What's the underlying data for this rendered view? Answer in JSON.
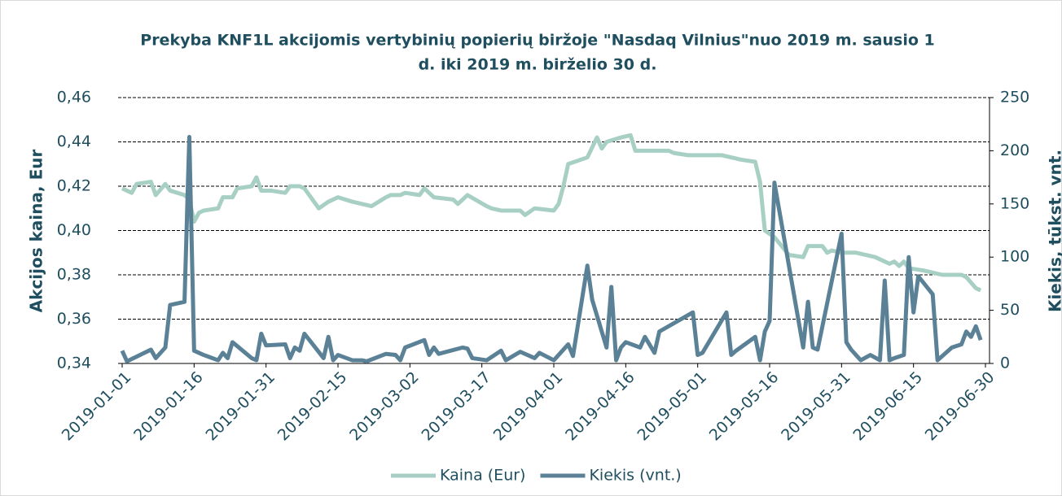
{
  "chart_data": {
    "type": "line",
    "title": "Prekyba KNF1L akcijomis vertybinių popierių biržoje \"Nasdaq Vilnius\"nuo 2019 m. sausio 1",
    "subtitle": "d. iki 2019 m. birželio 30 d.",
    "ylabel": "Akcijos kaina, Eur",
    "y2label": "Kiekis, tūkst. vnt.",
    "xlim": [
      "2019-01-01",
      "2019-06-30"
    ],
    "xticks": [
      "2019-01-01",
      "2019-01-16",
      "2019-01-31",
      "2019-02-15",
      "2019-03-02",
      "2019-03-17",
      "2019-04-01",
      "2019-04-16",
      "2019-05-01",
      "2019-05-16",
      "2019-05-31",
      "2019-06-15",
      "2019-06-30"
    ],
    "ylim": [
      0.34,
      0.46
    ],
    "yticks": [
      {
        "value": 0.34,
        "label": "0,34"
      },
      {
        "value": 0.36,
        "label": "0,36"
      },
      {
        "value": 0.38,
        "label": "0,38"
      },
      {
        "value": 0.4,
        "label": "0,40"
      },
      {
        "value": 0.42,
        "label": "0,42"
      },
      {
        "value": 0.44,
        "label": "0,44"
      },
      {
        "value": 0.46,
        "label": "0,46"
      }
    ],
    "y2lim": [
      0,
      250
    ],
    "y2ticks": [
      0,
      50,
      100,
      150,
      200,
      250
    ],
    "grid": true,
    "legend": "bottom",
    "series": [
      {
        "name": "Kaina (Eur)",
        "color": "#a8cfc4",
        "axis": "y",
        "x": [
          "2019-01-01",
          "2019-01-03",
          "2019-01-04",
          "2019-01-07",
          "2019-01-08",
          "2019-01-10",
          "2019-01-11",
          "2019-01-14",
          "2019-01-15",
          "2019-01-16",
          "2019-01-17",
          "2019-01-18",
          "2019-01-21",
          "2019-01-22",
          "2019-01-24",
          "2019-01-25",
          "2019-01-28",
          "2019-01-29",
          "2019-01-30",
          "2019-02-01",
          "2019-02-04",
          "2019-02-05",
          "2019-02-07",
          "2019-02-08",
          "2019-02-11",
          "2019-02-13",
          "2019-02-15",
          "2019-02-18",
          "2019-02-20",
          "2019-02-22",
          "2019-02-25",
          "2019-02-26",
          "2019-02-28",
          "2019-03-01",
          "2019-03-04",
          "2019-03-05",
          "2019-03-07",
          "2019-03-11",
          "2019-03-12",
          "2019-03-14",
          "2019-03-18",
          "2019-03-19",
          "2019-03-21",
          "2019-03-25",
          "2019-03-26",
          "2019-03-28",
          "2019-04-01",
          "2019-04-02",
          "2019-04-03",
          "2019-04-04",
          "2019-04-08",
          "2019-04-10",
          "2019-04-11",
          "2019-04-12",
          "2019-04-15",
          "2019-04-17",
          "2019-04-18",
          "2019-04-25",
          "2019-04-26",
          "2019-04-29",
          "2019-05-06",
          "2019-05-08",
          "2019-05-10",
          "2019-05-13",
          "2019-05-14",
          "2019-05-15",
          "2019-05-17",
          "2019-05-20",
          "2019-05-23",
          "2019-05-24",
          "2019-05-27",
          "2019-05-28",
          "2019-05-29",
          "2019-05-31",
          "2019-06-03",
          "2019-06-05",
          "2019-06-07",
          "2019-06-10",
          "2019-06-11",
          "2019-06-12",
          "2019-06-13",
          "2019-06-14",
          "2019-06-17",
          "2019-06-19",
          "2019-06-21",
          "2019-06-25",
          "2019-06-26",
          "2019-06-28",
          "2019-06-29"
        ],
        "values": [
          0.419,
          0.417,
          0.421,
          0.422,
          0.416,
          0.421,
          0.418,
          0.416,
          0.414,
          0.404,
          0.408,
          0.409,
          0.41,
          0.415,
          0.415,
          0.419,
          0.42,
          0.424,
          0.418,
          0.418,
          0.417,
          0.42,
          0.42,
          0.419,
          0.41,
          0.413,
          0.415,
          0.413,
          0.412,
          0.411,
          0.415,
          0.416,
          0.416,
          0.417,
          0.416,
          0.419,
          0.415,
          0.414,
          0.412,
          0.416,
          0.411,
          0.41,
          0.409,
          0.409,
          0.407,
          0.41,
          0.409,
          0.412,
          0.42,
          0.43,
          0.433,
          0.442,
          0.437,
          0.44,
          0.442,
          0.443,
          0.436,
          0.436,
          0.435,
          0.434,
          0.434,
          0.433,
          0.432,
          0.431,
          0.422,
          0.4,
          0.397,
          0.389,
          0.388,
          0.393,
          0.393,
          0.39,
          0.391,
          0.39,
          0.39,
          0.389,
          0.388,
          0.385,
          0.386,
          0.384,
          0.386,
          0.383,
          0.382,
          0.381,
          0.38,
          0.38,
          0.379,
          0.374,
          0.373
        ]
      },
      {
        "name": "Kiekis (vnt.)",
        "color": "#5b8197",
        "axis": "y2",
        "x": [
          "2019-01-01",
          "2019-01-02",
          "2019-01-07",
          "2019-01-08",
          "2019-01-10",
          "2019-01-11",
          "2019-01-14",
          "2019-01-15",
          "2019-01-16",
          "2019-01-18",
          "2019-01-21",
          "2019-01-22",
          "2019-01-23",
          "2019-01-24",
          "2019-01-28",
          "2019-01-29",
          "2019-01-30",
          "2019-01-31",
          "2019-02-04",
          "2019-02-05",
          "2019-02-06",
          "2019-02-07",
          "2019-02-08",
          "2019-02-12",
          "2019-02-13",
          "2019-02-14",
          "2019-02-15",
          "2019-02-18",
          "2019-02-20",
          "2019-02-21",
          "2019-02-25",
          "2019-02-27",
          "2019-02-28",
          "2019-03-01",
          "2019-03-05",
          "2019-03-06",
          "2019-03-07",
          "2019-03-08",
          "2019-03-13",
          "2019-03-14",
          "2019-03-15",
          "2019-03-18",
          "2019-03-21",
          "2019-03-22",
          "2019-03-25",
          "2019-03-28",
          "2019-03-29",
          "2019-04-01",
          "2019-04-02",
          "2019-04-04",
          "2019-04-05",
          "2019-04-08",
          "2019-04-09",
          "2019-04-12",
          "2019-04-13",
          "2019-04-14",
          "2019-04-15",
          "2019-04-16",
          "2019-04-19",
          "2019-04-20",
          "2019-04-22",
          "2019-04-23",
          "2019-04-30",
          "2019-05-01",
          "2019-05-02",
          "2019-05-07",
          "2019-05-08",
          "2019-05-09",
          "2019-05-13",
          "2019-05-14",
          "2019-05-15",
          "2019-05-16",
          "2019-05-17",
          "2019-05-23",
          "2019-05-24",
          "2019-05-25",
          "2019-05-26",
          "2019-05-31",
          "2019-06-01",
          "2019-06-02",
          "2019-06-04",
          "2019-06-06",
          "2019-06-08",
          "2019-06-09",
          "2019-06-10",
          "2019-06-11",
          "2019-06-13",
          "2019-06-14",
          "2019-06-15",
          "2019-06-16",
          "2019-06-19",
          "2019-06-20",
          "2019-06-23",
          "2019-06-25",
          "2019-06-26",
          "2019-06-27",
          "2019-06-28",
          "2019-06-29"
        ],
        "values": [
          12,
          2,
          13,
          5,
          15,
          55,
          58,
          213,
          12,
          8,
          3,
          10,
          5,
          20,
          5,
          3,
          28,
          17,
          18,
          5,
          15,
          12,
          28,
          5,
          25,
          3,
          8,
          3,
          3,
          2,
          9,
          8,
          3,
          15,
          22,
          8,
          15,
          9,
          15,
          14,
          5,
          3,
          12,
          3,
          11,
          5,
          10,
          3,
          8,
          18,
          7,
          92,
          60,
          15,
          72,
          3,
          15,
          20,
          15,
          25,
          10,
          30,
          48,
          8,
          10,
          48,
          8,
          12,
          25,
          3,
          30,
          40,
          170,
          15,
          58,
          15,
          13,
          122,
          20,
          13,
          3,
          8,
          3,
          78,
          3,
          5,
          8,
          100,
          48,
          82,
          65,
          3,
          15,
          18,
          30,
          25,
          35,
          22
        ]
      }
    ]
  }
}
